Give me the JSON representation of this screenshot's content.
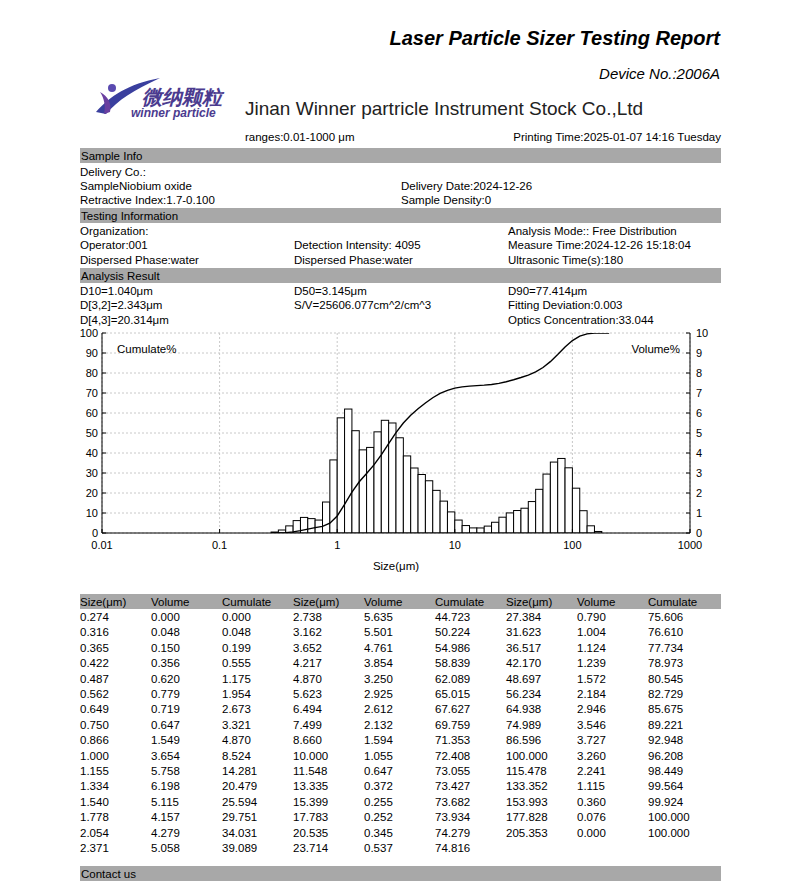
{
  "header": {
    "title": "Laser Particle Sizer Testing Report",
    "device": "Device No.:2006A",
    "logo_cn": "微纳颗粒",
    "logo_en": "winner particle",
    "company": "Jinan Winner partricle Instrument Stock Co.,Ltd",
    "ranges": "ranges:0.01-1000 μm",
    "printing_time": "Printing Time:2025-01-07 14:16 Tuesday"
  },
  "sections": [
    {
      "title": "Sample Info",
      "fields": [
        "Delivery Co.:",
        "SampleNiobium oxide",
        "Delivery Date:2024-12-26",
        "Retractive Index:1.7-0.100",
        "Sample Density:0"
      ]
    },
    {
      "title": "Testing Information",
      "fields": [
        "Organization:",
        "Analysis Mode:: Free Distribution",
        "Operator:001",
        "Detection Intensity: 4095",
        "Measure Time:2024-12-26 15:18:04",
        "Dispersed Phase:water",
        "Dispersed Phase:water",
        "Ultrasonic Time(s):180"
      ]
    },
    {
      "title": "Analysis Result",
      "fields": [
        "D10=1.040μm",
        "D50=3.145μm",
        "D90=77.414μm",
        "D[3,2]=2.343μm",
        "S/V=25606.077cm^2/cm^3",
        "Fitting Deviation:0.003",
        "D[4,3]=20.314μm",
        "Optics Concentration:33.044"
      ]
    }
  ],
  "chart_data": {
    "type": "bar",
    "log": "x",
    "grid": true,
    "x_label": "Size(μm)",
    "xlim": [
      0.01,
      1000
    ],
    "xticks": [
      0.01,
      0.1,
      1,
      10,
      100,
      1000
    ],
    "ylim": [
      0,
      100
    ],
    "yticks": [
      0,
      10,
      20,
      30,
      40,
      50,
      60,
      70,
      80,
      90,
      100
    ],
    "y2lim": [
      0,
      10
    ],
    "y2ticks": [
      0,
      1,
      2,
      3,
      4,
      5,
      6,
      7,
      8,
      9,
      10
    ],
    "x": [
      0.274,
      0.316,
      0.365,
      0.422,
      0.487,
      0.562,
      0.649,
      0.75,
      0.866,
      1.0,
      1.155,
      1.334,
      1.54,
      1.778,
      2.054,
      2.371,
      2.738,
      3.162,
      3.652,
      4.217,
      4.87,
      5.623,
      6.494,
      7.499,
      8.66,
      10.0,
      11.548,
      13.335,
      15.399,
      17.783,
      20.535,
      23.714,
      27.384,
      31.623,
      36.517,
      42.17,
      48.697,
      56.234,
      64.938,
      74.989,
      86.596,
      100.0,
      115.478,
      133.352,
      153.993,
      177.828,
      205.353
    ],
    "series": [
      {
        "name": "Volume%",
        "type": "bar",
        "axis": "y2",
        "color": "#ffffff",
        "values": [
          0,
          0.048,
          0.15,
          0.356,
          0.62,
          0.779,
          0.719,
          0.647,
          1.549,
          3.654,
          5.758,
          6.198,
          5.115,
          4.157,
          4.279,
          5.058,
          5.635,
          5.501,
          4.761,
          3.854,
          3.25,
          2.925,
          2.612,
          2.132,
          1.594,
          1.055,
          0.647,
          0.372,
          0.255,
          0.252,
          0.345,
          0.537,
          0.79,
          1.004,
          1.124,
          1.239,
          1.572,
          2.184,
          2.946,
          3.546,
          3.727,
          3.26,
          2.241,
          1.115,
          0.36,
          0.076,
          0
        ]
      },
      {
        "name": "Cumulate%",
        "type": "line",
        "color": "#000000",
        "values": [
          0,
          0.048,
          0.199,
          0.555,
          1.175,
          1.954,
          2.673,
          3.321,
          4.87,
          8.524,
          14.281,
          20.479,
          25.594,
          29.751,
          34.031,
          39.089,
          44.723,
          50.224,
          54.986,
          58.839,
          62.089,
          65.015,
          67.627,
          69.759,
          71.353,
          72.408,
          73.055,
          73.427,
          73.682,
          73.934,
          74.279,
          74.816,
          75.606,
          76.61,
          77.734,
          78.973,
          80.545,
          82.729,
          85.675,
          89.221,
          92.948,
          96.208,
          98.449,
          99.564,
          99.924,
          100,
          100
        ]
      }
    ]
  },
  "table": {
    "columns": [
      "Size(μm)",
      "Volume",
      "Cumulate"
    ],
    "rows": [
      [
        "0.274",
        "0.000",
        "0.000"
      ],
      [
        "0.316",
        "0.048",
        "0.048"
      ],
      [
        "0.365",
        "0.150",
        "0.199"
      ],
      [
        "0.422",
        "0.356",
        "0.555"
      ],
      [
        "0.487",
        "0.620",
        "1.175"
      ],
      [
        "0.562",
        "0.779",
        "1.954"
      ],
      [
        "0.649",
        "0.719",
        "2.673"
      ],
      [
        "0.750",
        "0.647",
        "3.321"
      ],
      [
        "0.866",
        "1.549",
        "4.870"
      ],
      [
        "1.000",
        "3.654",
        "8.524"
      ],
      [
        "1.155",
        "5.758",
        "14.281"
      ],
      [
        "1.334",
        "6.198",
        "20.479"
      ],
      [
        "1.540",
        "5.115",
        "25.594"
      ],
      [
        "1.778",
        "4.157",
        "29.751"
      ],
      [
        "2.054",
        "4.279",
        "34.031"
      ],
      [
        "2.371",
        "5.058",
        "39.089"
      ],
      [
        "2.738",
        "5.635",
        "44.723"
      ],
      [
        "3.162",
        "5.501",
        "50.224"
      ],
      [
        "3.652",
        "4.761",
        "54.986"
      ],
      [
        "4.217",
        "3.854",
        "58.839"
      ],
      [
        "4.870",
        "3.250",
        "62.089"
      ],
      [
        "5.623",
        "2.925",
        "65.015"
      ],
      [
        "6.494",
        "2.612",
        "67.627"
      ],
      [
        "7.499",
        "2.132",
        "69.759"
      ],
      [
        "8.660",
        "1.594",
        "71.353"
      ],
      [
        "10.000",
        "1.055",
        "72.408"
      ],
      [
        "11.548",
        "0.647",
        "73.055"
      ],
      [
        "13.335",
        "0.372",
        "73.427"
      ],
      [
        "15.399",
        "0.255",
        "73.682"
      ],
      [
        "17.783",
        "0.252",
        "73.934"
      ],
      [
        "20.535",
        "0.345",
        "74.279"
      ],
      [
        "23.714",
        "0.537",
        "74.816"
      ],
      [
        "27.384",
        "0.790",
        "75.606"
      ],
      [
        "31.623",
        "1.004",
        "76.610"
      ],
      [
        "36.517",
        "1.124",
        "77.734"
      ],
      [
        "42.170",
        "1.239",
        "78.973"
      ],
      [
        "48.697",
        "1.572",
        "80.545"
      ],
      [
        "56.234",
        "2.184",
        "82.729"
      ],
      [
        "64.938",
        "2.946",
        "85.675"
      ],
      [
        "74.989",
        "3.546",
        "89.221"
      ],
      [
        "86.596",
        "3.727",
        "92.948"
      ],
      [
        "100.000",
        "3.260",
        "96.208"
      ],
      [
        "115.478",
        "2.241",
        "98.449"
      ],
      [
        "133.352",
        "1.115",
        "99.564"
      ],
      [
        "153.993",
        "0.360",
        "99.924"
      ],
      [
        "177.828",
        "0.076",
        "100.000"
      ],
      [
        "205.353",
        "0.000",
        "100.000"
      ]
    ]
  },
  "footer": "Contact us"
}
